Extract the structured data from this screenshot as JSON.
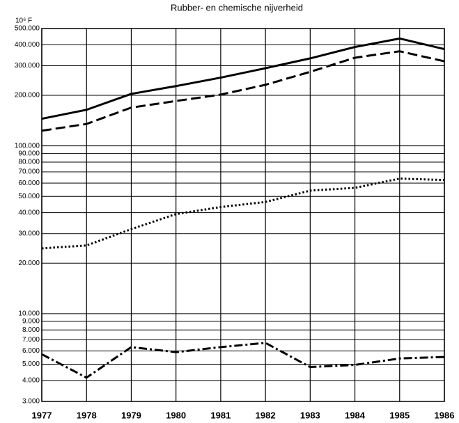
{
  "chart_data": {
    "type": "line",
    "title": "Rubber- en chemische nijverheid",
    "y_label": "10⁶ F",
    "log_y": true,
    "grid": true,
    "x": [
      1977,
      1978,
      1979,
      1980,
      1981,
      1982,
      1983,
      1984,
      1985,
      1986
    ],
    "xlim": [
      1977,
      1986
    ],
    "xticks": [
      1977,
      1978,
      1979,
      1980,
      1981,
      1982,
      1983,
      1984,
      1985,
      1986
    ],
    "ylim": [
      3000,
      500000
    ],
    "yticks": [
      {
        "value": 3000,
        "label": "3.000"
      },
      {
        "value": 4000,
        "label": "4.000"
      },
      {
        "value": 5000,
        "label": "5.000"
      },
      {
        "value": 6000,
        "label": "6.000"
      },
      {
        "value": 7000,
        "label": "7.000"
      },
      {
        "value": 8000,
        "label": "8.000"
      },
      {
        "value": 9000,
        "label": "9.000"
      },
      {
        "value": 10000,
        "label": "10.000"
      },
      {
        "value": 20000,
        "label": "20.000"
      },
      {
        "value": 30000,
        "label": "30.000"
      },
      {
        "value": 40000,
        "label": "40.000"
      },
      {
        "value": 50000,
        "label": "50.000"
      },
      {
        "value": 60000,
        "label": "60.000"
      },
      {
        "value": 70000,
        "label": "70.000"
      },
      {
        "value": 80000,
        "label": "80.000"
      },
      {
        "value": 90000,
        "label": "90.000"
      },
      {
        "value": 100000,
        "label": "100.000"
      },
      {
        "value": 200000,
        "label": "200.000"
      },
      {
        "value": 300000,
        "label": "300.000"
      },
      {
        "value": 400000,
        "label": "400.000"
      },
      {
        "value": 500000,
        "label": "500.000"
      }
    ],
    "series": [
      {
        "color": "#000000",
        "style": "solid",
        "values": [
          145000,
          164000,
          204000,
          227000,
          255000,
          290000,
          332000,
          388000,
          436000,
          377000
        ]
      },
      {
        "color": "#000000",
        "style": "dashed",
        "values": [
          123000,
          135000,
          169000,
          185000,
          202000,
          231000,
          276000,
          335000,
          366000,
          319000
        ]
      },
      {
        "color": "#000000",
        "style": "dotted",
        "values": [
          24500,
          25500,
          31900,
          39200,
          43200,
          46300,
          54100,
          56200,
          63800,
          62600
        ]
      },
      {
        "color": "#000000",
        "style": "dashdot",
        "values": [
          5730,
          4160,
          6320,
          5900,
          6320,
          6700,
          4810,
          4950,
          5410,
          5520
        ]
      }
    ]
  }
}
